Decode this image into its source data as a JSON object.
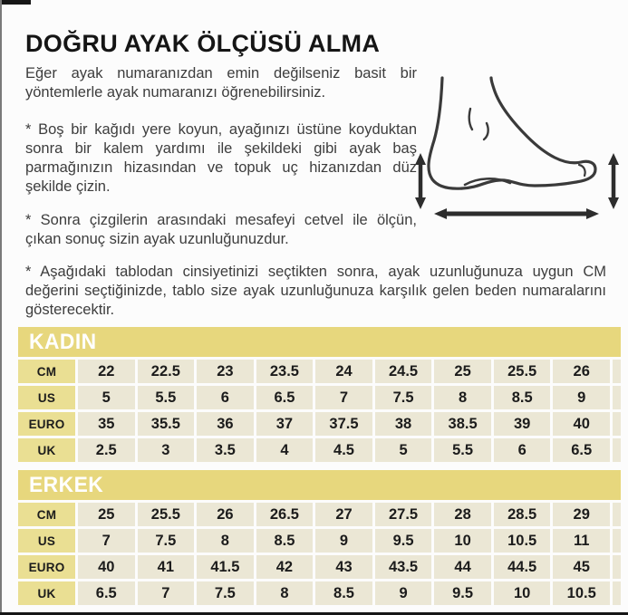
{
  "header": {
    "title": "DOĞRU AYAK ÖLÇÜSÜ ALMA"
  },
  "intro": "Eğer ayak numaranızdan emin değilseniz basit bir yöntemlerle ayak numaranızı öğrenebilirsiniz.",
  "steps": [
    "* Boş bir kağıdı yere koyun, ayağınızı üstüne koyduktan sonra bir kalem yardımı ile şekildeki gibi ayak baş parmağınızın hizasından ve topuk uç hizanızdan düz şekilde çizin.",
    "* Sonra çizgilerin arasındaki mesafeyi cetvel ile ölçün, çıkan sonuç sizin ayak uzunluğunuzdur.",
    "* Aşağıdaki tablodan cinsiyetinizi seçtikten sonra, ayak uzunluğunuza uygun CM değerini seçtiğinizde, tablo size ayak uzunluğunuza karşılık gelen beden numaralarını gösterecektir."
  ],
  "illustration": {
    "name": "foot side profile with length and height measurement arrows"
  },
  "colors": {
    "band_yellow": "#e7d77d",
    "label_yellow": "#eadf93",
    "cell_cream": "#ebe7d5",
    "text_dark": "#3d3d3d",
    "title_black": "#151515",
    "band_text": "#ffffff"
  },
  "size_tables": [
    {
      "title": "KADIN",
      "rows": [
        {
          "label": "CM",
          "values": [
            "22",
            "22.5",
            "23",
            "23.5",
            "24",
            "24.5",
            "25",
            "25.5",
            "26"
          ]
        },
        {
          "label": "US",
          "values": [
            "5",
            "5.5",
            "6",
            "6.5",
            "7",
            "7.5",
            "8",
            "8.5",
            "9"
          ]
        },
        {
          "label": "EURO",
          "values": [
            "35",
            "35.5",
            "36",
            "37",
            "37.5",
            "38",
            "38.5",
            "39",
            "40"
          ]
        },
        {
          "label": "UK",
          "values": [
            "2.5",
            "3",
            "3.5",
            "4",
            "4.5",
            "5",
            "5.5",
            "6",
            "6.5"
          ]
        }
      ]
    },
    {
      "title": "ERKEK",
      "rows": [
        {
          "label": "CM",
          "values": [
            "25",
            "25.5",
            "26",
            "26.5",
            "27",
            "27.5",
            "28",
            "28.5",
            "29"
          ]
        },
        {
          "label": "US",
          "values": [
            "7",
            "7.5",
            "8",
            "8.5",
            "9",
            "9.5",
            "10",
            "10.5",
            "11"
          ]
        },
        {
          "label": "EURO",
          "values": [
            "40",
            "41",
            "41.5",
            "42",
            "43",
            "43.5",
            "44",
            "44.5",
            "45"
          ]
        },
        {
          "label": "UK",
          "values": [
            "6.5",
            "7",
            "7.5",
            "8",
            "8.5",
            "9",
            "9.5",
            "10",
            "10.5"
          ]
        }
      ]
    }
  ]
}
